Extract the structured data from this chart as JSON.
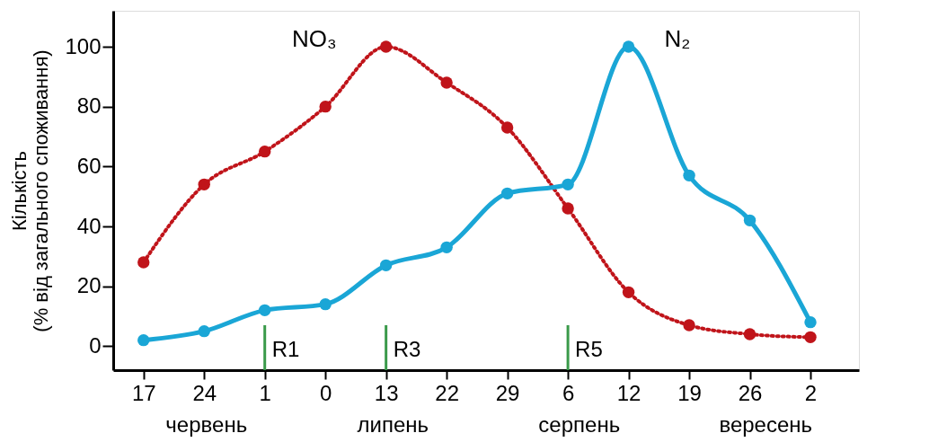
{
  "chart_data": {
    "type": "line",
    "ylabel": "Кількість\n(% від загального споживання)",
    "categories": [
      "17",
      "24",
      "1",
      "0",
      "13",
      "22",
      "29",
      "6",
      "12",
      "19",
      "26",
      "2"
    ],
    "ylim": [
      -8,
      112
    ],
    "yticks": [
      0,
      20,
      40,
      60,
      80,
      100
    ],
    "grid": false,
    "marker": "circle",
    "series": [
      {
        "name": "NO₃",
        "color": "#c0141a",
        "line_style": "dotted",
        "values": [
          28,
          54,
          65,
          80,
          100,
          88,
          73,
          46,
          18,
          7,
          4,
          3
        ]
      },
      {
        "name": "N₂",
        "color": "#1aa6d6",
        "line_style": "solid",
        "values": [
          2,
          5,
          12,
          14,
          27,
          33,
          51,
          54,
          100,
          57,
          42,
          8
        ]
      }
    ],
    "ref_lines": [
      {
        "axis": "x",
        "value": "1",
        "label": "R1",
        "color": "#3a9a4a"
      },
      {
        "axis": "x",
        "value": "13",
        "label": "R3",
        "color": "#3a9a4a"
      },
      {
        "axis": "x",
        "value": "6",
        "label": "R5",
        "color": "#3a9a4a"
      }
    ],
    "annotations": [
      "червень",
      "липень",
      "серпень",
      "вересень"
    ]
  }
}
